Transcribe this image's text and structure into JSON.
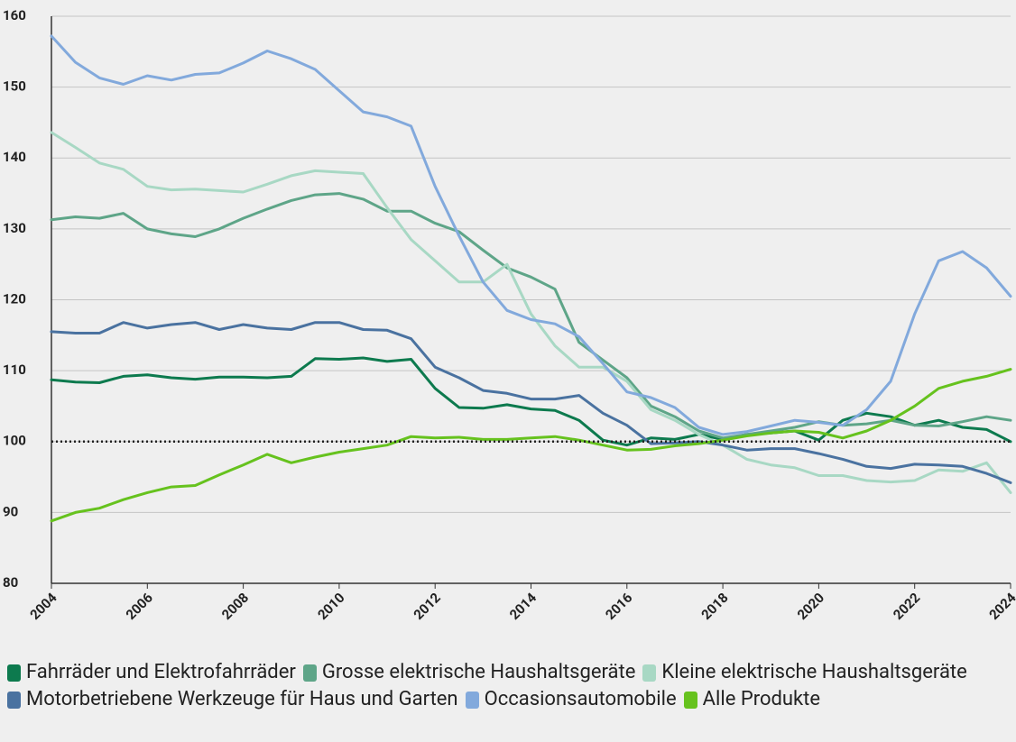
{
  "chart_data": {
    "type": "line",
    "x": [
      2004,
      2004.5,
      2005,
      2005.5,
      2006,
      2006.5,
      2007,
      2007.5,
      2008,
      2008.5,
      2009,
      2009.5,
      2010,
      2010.5,
      2011,
      2011.5,
      2012,
      2012.5,
      2013,
      2013.5,
      2014,
      2014.5,
      2015,
      2015.5,
      2016,
      2016.5,
      2017,
      2017.5,
      2018,
      2018.5,
      2019,
      2019.5,
      2020,
      2020.5,
      2021,
      2021.5,
      2022,
      2022.5,
      2023,
      2023.5,
      2024
    ],
    "series": [
      {
        "name": "Fahrräder und Elektrofahrräder",
        "color": "#0d7a4e",
        "values": [
          108.7,
          108.4,
          108.3,
          109.2,
          109.4,
          109,
          108.8,
          109.1,
          109.1,
          109,
          109.2,
          111.7,
          111.6,
          111.8,
          111.3,
          111.6,
          107.5,
          104.8,
          104.7,
          105.2,
          104.6,
          104.4,
          103,
          100.2,
          99.5,
          100.5,
          100.3,
          101,
          100.3,
          101,
          101.2,
          101.5,
          100.2,
          103,
          104,
          103.5,
          102.3,
          103,
          102,
          101.7,
          100
        ]
      },
      {
        "name": "Grosse elektrische Haushaltsgeräte",
        "color": "#5ea588",
        "values": [
          131.3,
          131.7,
          131.5,
          132.2,
          130,
          129.3,
          128.9,
          130,
          131.5,
          132.8,
          134,
          134.8,
          135,
          134.2,
          132.5,
          132.5,
          130.8,
          129.6,
          127,
          124.5,
          123.2,
          121.5,
          114,
          111.5,
          109,
          105,
          103.5,
          101.5,
          100.5,
          101,
          101.5,
          102,
          102.8,
          102.3,
          102.5,
          103,
          102.3,
          102.2,
          102.8,
          103.5,
          103
        ]
      },
      {
        "name": "Kleine elektrische Haushaltsgeräte",
        "color": "#a8d8c4",
        "values": [
          143.6,
          141.5,
          139.3,
          138.4,
          136,
          135.5,
          135.6,
          135.4,
          135.2,
          136.3,
          137.5,
          138.2,
          138,
          137.8,
          133,
          128.5,
          125.5,
          122.5,
          122.5,
          125,
          118,
          113.5,
          110.5,
          110.5,
          108.5,
          104.5,
          103,
          101,
          99.5,
          97.5,
          96.7,
          96.3,
          95.2,
          95.2,
          94.5,
          94.3,
          94.5,
          96,
          95.8,
          97,
          92.8
        ]
      },
      {
        "name": "Motorbetriebene Werkzeuge für Haus und Garten",
        "color": "#4a72a0",
        "values": [
          115.5,
          115.3,
          115.3,
          116.8,
          116,
          116.5,
          116.8,
          115.8,
          116.5,
          116,
          115.8,
          116.8,
          116.8,
          115.8,
          115.7,
          114.5,
          110.5,
          109,
          107.2,
          106.8,
          106,
          106,
          106.5,
          104,
          102.3,
          99.7,
          99.8,
          100,
          99.5,
          98.8,
          99,
          99,
          98.3,
          97.5,
          96.5,
          96.2,
          96.8,
          96.7,
          96.5,
          95.5,
          94.2
        ]
      },
      {
        "name": "Occasionsautomobile",
        "color": "#82a9dc",
        "values": [
          157.2,
          153.5,
          151.3,
          150.4,
          151.6,
          151,
          151.8,
          152,
          153.4,
          155.1,
          154,
          152.5,
          149.5,
          146.5,
          145.8,
          144.5,
          136,
          129,
          122.5,
          118.5,
          117.2,
          116.6,
          114.8,
          111,
          107,
          106.2,
          104.8,
          102,
          101,
          101.4,
          102.2,
          103,
          102.7,
          102.3,
          104.5,
          108.5,
          118,
          125.5,
          126.8,
          124.5,
          120.5
        ]
      },
      {
        "name": "Alle Produkte",
        "color": "#66c21e",
        "values": [
          88.8,
          90,
          90.6,
          91.8,
          92.8,
          93.6,
          93.8,
          95.3,
          96.7,
          98.2,
          97,
          97.8,
          98.5,
          99,
          99.5,
          100.7,
          100.5,
          100.6,
          100.3,
          100.3,
          100.5,
          100.7,
          100.2,
          99.5,
          98.8,
          98.9,
          99.4,
          99.7,
          100.2,
          100.8,
          101.2,
          101.5,
          101.3,
          100.5,
          101.5,
          103,
          105,
          107.5,
          108.5,
          109.2,
          110.2
        ]
      }
    ],
    "xlim": [
      2004,
      2024
    ],
    "xticks": [
      2004,
      2006,
      2008,
      2010,
      2012,
      2014,
      2016,
      2018,
      2020,
      2022,
      2024
    ],
    "ylim": [
      80,
      160
    ],
    "yticks": [
      80,
      90,
      100,
      110,
      120,
      130,
      140,
      150,
      160
    ],
    "hline": 100,
    "grid": true,
    "legend": "bottom"
  }
}
